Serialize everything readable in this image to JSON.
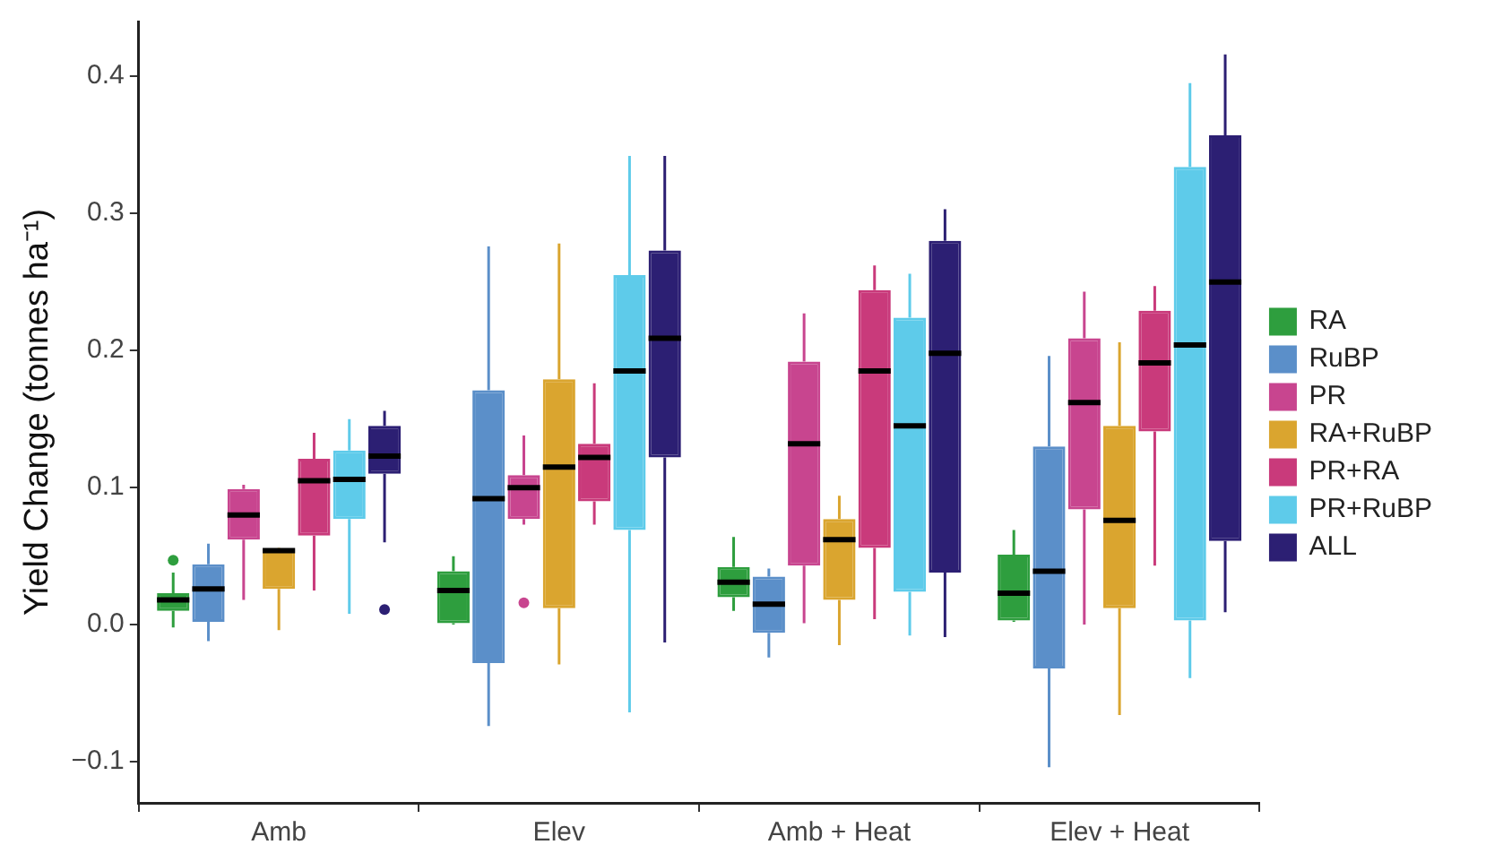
{
  "chart_data": {
    "type": "box",
    "ylabel": "Yield Change (tonnes ha⁻¹)",
    "categories": [
      "Amb",
      "Elev",
      "Amb + Heat",
      "Elev + Heat"
    ],
    "ylim": [
      -0.13,
      0.44
    ],
    "yticks": [
      {
        "value": -0.1,
        "label": "−0.1"
      },
      {
        "value": 0,
        "label": "0.0"
      },
      {
        "value": 0.1,
        "label": "0.1"
      },
      {
        "value": 0.2,
        "label": "0.2"
      },
      {
        "value": 0.3,
        "label": "0.3"
      },
      {
        "value": 0.4,
        "label": "0.4"
      }
    ],
    "grid": false,
    "legend": "right",
    "series": [
      {
        "name": "RA",
        "color": "#2e9e3e",
        "boxes": [
          {
            "low": -0.002,
            "q1": 0.01,
            "median": 0.018,
            "q3": 0.023,
            "high": 0.038,
            "outliers": [
              0.047
            ]
          },
          {
            "low": 0.0,
            "q1": 0.001,
            "median": 0.025,
            "q3": 0.039,
            "high": 0.05
          },
          {
            "low": 0.01,
            "q1": 0.02,
            "median": 0.031,
            "q3": 0.042,
            "high": 0.064
          },
          {
            "low": 0.002,
            "q1": 0.003,
            "median": 0.023,
            "q3": 0.051,
            "high": 0.069
          }
        ]
      },
      {
        "name": "RuBP",
        "color": "#5b8fc9",
        "boxes": [
          {
            "low": -0.012,
            "q1": 0.002,
            "median": 0.026,
            "q3": 0.044,
            "high": 0.059
          },
          {
            "low": -0.074,
            "q1": -0.028,
            "median": 0.092,
            "q3": 0.171,
            "high": 0.276
          },
          {
            "low": -0.024,
            "q1": -0.006,
            "median": 0.015,
            "q3": 0.035,
            "high": 0.041
          },
          {
            "low": -0.104,
            "q1": -0.032,
            "median": 0.039,
            "q3": 0.13,
            "high": 0.196
          }
        ]
      },
      {
        "name": "PR",
        "color": "#c8458f",
        "boxes": [
          {
            "low": 0.018,
            "q1": 0.062,
            "median": 0.08,
            "q3": 0.099,
            "high": 0.102
          },
          {
            "low": 0.073,
            "q1": 0.077,
            "median": 0.1,
            "q3": 0.109,
            "high": 0.138,
            "outliers": [
              0.016
            ]
          },
          {
            "low": 0.001,
            "q1": 0.043,
            "median": 0.132,
            "q3": 0.192,
            "high": 0.227
          },
          {
            "low": 0.0,
            "q1": 0.084,
            "median": 0.162,
            "q3": 0.209,
            "high": 0.243
          }
        ]
      },
      {
        "name": "RA+RuBP",
        "color": "#daa52f",
        "boxes": [
          {
            "low": -0.004,
            "q1": 0.026,
            "median": 0.054,
            "q3": 0.055,
            "high": 0.056
          },
          {
            "low": -0.029,
            "q1": 0.012,
            "median": 0.115,
            "q3": 0.179,
            "high": 0.278
          },
          {
            "low": -0.015,
            "q1": 0.018,
            "median": 0.062,
            "q3": 0.077,
            "high": 0.094
          },
          {
            "low": -0.066,
            "q1": 0.012,
            "median": 0.076,
            "q3": 0.145,
            "high": 0.206
          }
        ]
      },
      {
        "name": "PR+RA",
        "color": "#c93a7b",
        "boxes": [
          {
            "low": 0.025,
            "q1": 0.065,
            "median": 0.105,
            "q3": 0.121,
            "high": 0.14
          },
          {
            "low": 0.073,
            "q1": 0.09,
            "median": 0.122,
            "q3": 0.132,
            "high": 0.176
          },
          {
            "low": 0.004,
            "q1": 0.056,
            "median": 0.185,
            "q3": 0.244,
            "high": 0.262
          },
          {
            "low": 0.043,
            "q1": 0.141,
            "median": 0.191,
            "q3": 0.229,
            "high": 0.247
          }
        ]
      },
      {
        "name": "PR+RuBP",
        "color": "#5ecbea",
        "boxes": [
          {
            "low": 0.008,
            "q1": 0.077,
            "median": 0.106,
            "q3": 0.127,
            "high": 0.15
          },
          {
            "low": -0.064,
            "q1": 0.069,
            "median": 0.185,
            "q3": 0.255,
            "high": 0.342
          },
          {
            "low": -0.008,
            "q1": 0.024,
            "median": 0.145,
            "q3": 0.224,
            "high": 0.256
          },
          {
            "low": -0.039,
            "q1": 0.003,
            "median": 0.204,
            "q3": 0.334,
            "high": 0.395
          }
        ]
      },
      {
        "name": "ALL",
        "color": "#2c1f73",
        "boxes": [
          {
            "low": 0.06,
            "q1": 0.11,
            "median": 0.123,
            "q3": 0.145,
            "high": 0.156,
            "outliers": [
              0.011
            ]
          },
          {
            "low": -0.013,
            "q1": 0.122,
            "median": 0.209,
            "q3": 0.273,
            "high": 0.342
          },
          {
            "low": -0.009,
            "q1": 0.038,
            "median": 0.198,
            "q3": 0.28,
            "high": 0.303
          },
          {
            "low": 0.009,
            "q1": 0.061,
            "median": 0.25,
            "q3": 0.357,
            "high": 0.416
          }
        ]
      }
    ]
  }
}
